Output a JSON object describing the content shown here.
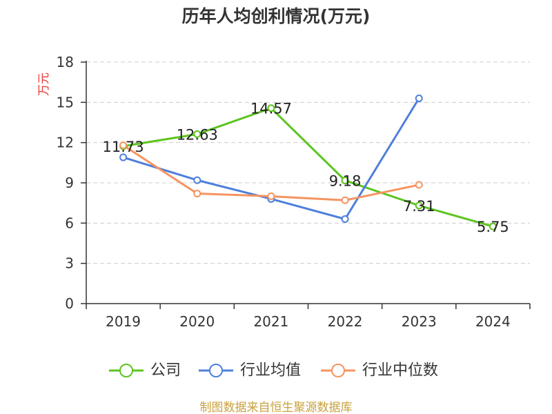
{
  "chart_data": {
    "type": "line",
    "title": "历年人均创利情况(万元)",
    "xlabel": "",
    "ylabel": "万元",
    "categories": [
      "2019",
      "2020",
      "2021",
      "2022",
      "2023",
      "2024"
    ],
    "ylim": [
      0,
      18
    ],
    "yticks": [
      0,
      3,
      6,
      9,
      12,
      15,
      18
    ],
    "grid": true,
    "legend": "bottom",
    "series": [
      {
        "name": "公司",
        "color": "#5bc41e",
        "data_labels": true,
        "values": [
          11.73,
          12.63,
          14.57,
          9.18,
          7.31,
          5.75
        ]
      },
      {
        "name": "行业均值",
        "color": "#4e7fdb",
        "data_labels": false,
        "values": [
          10.9,
          9.2,
          7.8,
          6.3,
          15.3,
          null
        ]
      },
      {
        "name": "行业中位数",
        "color": "#f59360",
        "data_labels": false,
        "values": [
          11.8,
          8.2,
          8.0,
          7.7,
          8.85,
          null
        ]
      }
    ]
  },
  "footer": "制图数据来自恒生聚源数据库"
}
